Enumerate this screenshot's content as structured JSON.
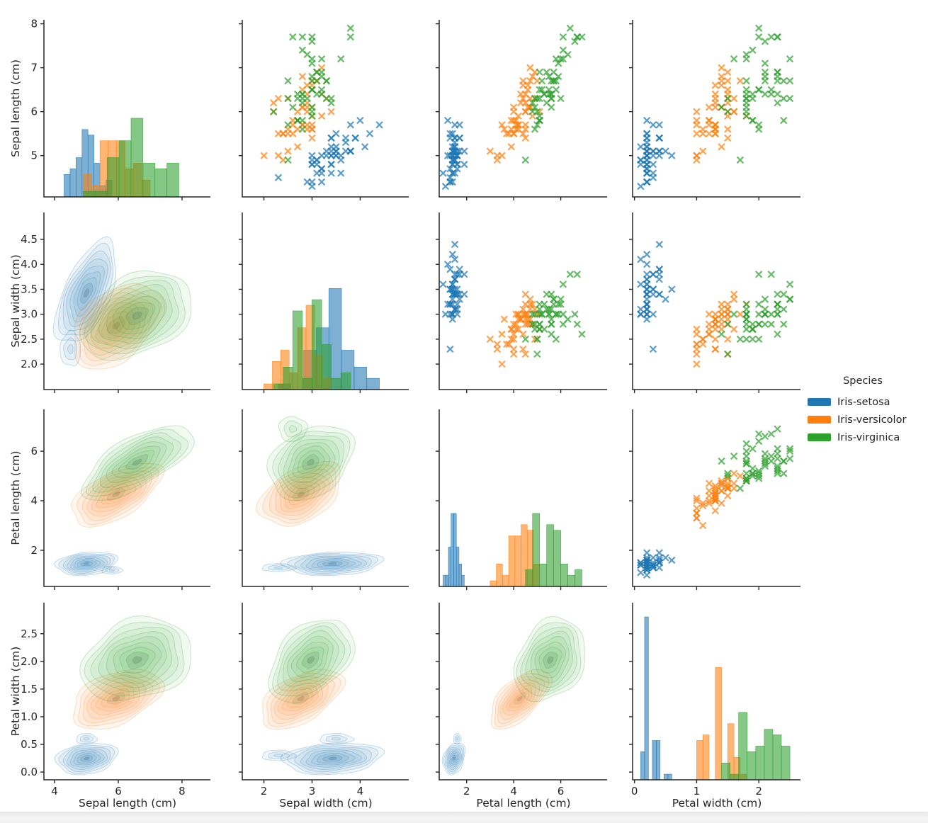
{
  "legend": {
    "title": "Species",
    "entries": [
      {
        "label": "Iris-setosa",
        "color": "#1f77b4"
      },
      {
        "label": "Iris-versicolor",
        "color": "#ff7f0e"
      },
      {
        "label": "Iris-virginica",
        "color": "#2ca02c"
      }
    ]
  },
  "axes": {
    "x_labels": [
      "Sepal length (cm)",
      "Sepal width (cm)",
      "Petal length (cm)",
      "Petal width (cm)"
    ],
    "y_labels": [
      "Sepal length (cm)",
      "Sepal width (cm)",
      "Petal length (cm)",
      "Petal width (cm)"
    ],
    "x_ticks": [
      {
        "values": [
          4,
          6,
          8
        ],
        "labels": [
          "4",
          "6",
          "8"
        ]
      },
      {
        "values": [
          2,
          3,
          4
        ],
        "labels": [
          "2",
          "3",
          "4"
        ]
      },
      {
        "values": [
          2,
          4,
          6
        ],
        "labels": [
          "2",
          "4",
          "6"
        ]
      },
      {
        "values": [
          0,
          1,
          2
        ],
        "labels": [
          "0",
          "1",
          "2"
        ]
      }
    ],
    "y_ticks": [
      {
        "values": [
          5,
          6,
          7,
          8
        ],
        "labels": [
          "5",
          "6",
          "7",
          "8"
        ]
      },
      {
        "values": [
          2.0,
          2.5,
          3.0,
          3.5,
          4.0,
          4.5
        ],
        "labels": [
          "2.0",
          "2.5",
          "3.0",
          "3.5",
          "4.0",
          "4.5"
        ]
      },
      {
        "values": [
          2,
          4,
          6
        ],
        "labels": [
          "2",
          "4",
          "6"
        ]
      },
      {
        "values": [
          0.0,
          0.5,
          1.0,
          1.5,
          2.0,
          2.5
        ],
        "labels": [
          "0.0",
          "0.5",
          "1.0",
          "1.5",
          "2.0",
          "2.5"
        ]
      }
    ],
    "x_lims": [
      [
        3.667,
        8.89
      ],
      [
        1.55,
        5.01
      ],
      [
        0.834,
        7.97
      ],
      [
        -0.03,
        2.67
      ]
    ],
    "y_lims": [
      [
        4.06,
        8.09
      ],
      [
        1.49,
        5.04
      ],
      [
        0.54,
        7.69
      ],
      [
        -0.14,
        3.06
      ]
    ]
  },
  "chart_data": {
    "type": "scatter",
    "subtype": "pairplot-matrix",
    "title": "",
    "variables": [
      "Sepal length (cm)",
      "Sepal width (cm)",
      "Petal length (cm)",
      "Petal width (cm)"
    ],
    "hue": "Species",
    "panel_layout": {
      "diagonal": "histogram",
      "upper_triangle": "scatter-x-markers",
      "lower_triangle": "filled-kde-contours"
    },
    "marker": "x",
    "grid": "off",
    "legend_position": "right",
    "series": [
      {
        "name": "Iris-setosa",
        "color": "#1f77b4",
        "points": [
          [
            5.1,
            3.5,
            1.4,
            0.2
          ],
          [
            4.9,
            3.0,
            1.4,
            0.2
          ],
          [
            4.7,
            3.2,
            1.3,
            0.2
          ],
          [
            4.6,
            3.1,
            1.5,
            0.2
          ],
          [
            5.0,
            3.6,
            1.4,
            0.2
          ],
          [
            5.4,
            3.9,
            1.7,
            0.4
          ],
          [
            4.6,
            3.4,
            1.4,
            0.3
          ],
          [
            5.0,
            3.4,
            1.5,
            0.2
          ],
          [
            4.4,
            2.9,
            1.4,
            0.2
          ],
          [
            4.9,
            3.1,
            1.5,
            0.1
          ],
          [
            5.4,
            3.7,
            1.5,
            0.2
          ],
          [
            4.8,
            3.4,
            1.6,
            0.2
          ],
          [
            4.8,
            3.0,
            1.4,
            0.1
          ],
          [
            4.3,
            3.0,
            1.1,
            0.1
          ],
          [
            5.8,
            4.0,
            1.2,
            0.2
          ],
          [
            5.7,
            4.4,
            1.5,
            0.4
          ],
          [
            5.4,
            3.9,
            1.3,
            0.4
          ],
          [
            5.1,
            3.5,
            1.4,
            0.3
          ],
          [
            5.7,
            3.8,
            1.7,
            0.3
          ],
          [
            5.1,
            3.8,
            1.5,
            0.3
          ],
          [
            5.4,
            3.4,
            1.7,
            0.2
          ],
          [
            5.1,
            3.7,
            1.5,
            0.4
          ],
          [
            4.6,
            3.6,
            1.0,
            0.2
          ],
          [
            5.1,
            3.3,
            1.7,
            0.5
          ],
          [
            4.8,
            3.4,
            1.9,
            0.2
          ],
          [
            5.0,
            3.0,
            1.6,
            0.2
          ],
          [
            5.0,
            3.4,
            1.6,
            0.4
          ],
          [
            5.2,
            3.5,
            1.5,
            0.2
          ],
          [
            5.2,
            3.4,
            1.4,
            0.2
          ],
          [
            4.7,
            3.2,
            1.6,
            0.2
          ],
          [
            4.8,
            3.1,
            1.6,
            0.2
          ],
          [
            5.4,
            3.4,
            1.5,
            0.4
          ],
          [
            5.2,
            4.1,
            1.5,
            0.1
          ],
          [
            5.5,
            4.2,
            1.4,
            0.2
          ],
          [
            4.9,
            3.1,
            1.5,
            0.2
          ],
          [
            5.0,
            3.2,
            1.2,
            0.2
          ],
          [
            5.5,
            3.5,
            1.3,
            0.2
          ],
          [
            4.9,
            3.6,
            1.4,
            0.1
          ],
          [
            4.4,
            3.0,
            1.3,
            0.2
          ],
          [
            5.1,
            3.4,
            1.5,
            0.2
          ],
          [
            5.0,
            3.5,
            1.3,
            0.3
          ],
          [
            4.5,
            2.3,
            1.3,
            0.3
          ],
          [
            4.4,
            3.2,
            1.3,
            0.2
          ],
          [
            5.0,
            3.5,
            1.6,
            0.6
          ],
          [
            5.1,
            3.8,
            1.9,
            0.4
          ],
          [
            4.8,
            3.0,
            1.4,
            0.3
          ],
          [
            5.1,
            3.8,
            1.6,
            0.2
          ],
          [
            4.6,
            3.2,
            1.4,
            0.2
          ],
          [
            5.3,
            3.7,
            1.5,
            0.2
          ],
          [
            5.0,
            3.3,
            1.4,
            0.2
          ]
        ]
      },
      {
        "name": "Iris-versicolor",
        "color": "#ff7f0e",
        "points": [
          [
            7.0,
            3.2,
            4.7,
            1.4
          ],
          [
            6.4,
            3.2,
            4.5,
            1.5
          ],
          [
            6.9,
            3.1,
            4.9,
            1.5
          ],
          [
            5.5,
            2.3,
            4.0,
            1.3
          ],
          [
            6.5,
            2.8,
            4.6,
            1.5
          ],
          [
            5.7,
            2.8,
            4.5,
            1.3
          ],
          [
            6.3,
            3.3,
            4.7,
            1.6
          ],
          [
            4.9,
            2.4,
            3.3,
            1.0
          ],
          [
            6.6,
            2.9,
            4.6,
            1.3
          ],
          [
            5.2,
            2.7,
            3.9,
            1.4
          ],
          [
            5.0,
            2.0,
            3.5,
            1.0
          ],
          [
            5.9,
            3.0,
            4.2,
            1.5
          ],
          [
            6.0,
            2.2,
            4.0,
            1.0
          ],
          [
            6.1,
            2.9,
            4.7,
            1.4
          ],
          [
            5.6,
            2.9,
            3.6,
            1.3
          ],
          [
            6.7,
            3.1,
            4.4,
            1.4
          ],
          [
            5.6,
            3.0,
            4.5,
            1.5
          ],
          [
            5.8,
            2.7,
            4.1,
            1.0
          ],
          [
            6.2,
            2.2,
            4.5,
            1.5
          ],
          [
            5.6,
            2.5,
            3.9,
            1.1
          ],
          [
            5.9,
            3.2,
            4.8,
            1.8
          ],
          [
            6.1,
            2.8,
            4.0,
            1.3
          ],
          [
            6.3,
            2.5,
            4.9,
            1.5
          ],
          [
            6.1,
            2.8,
            4.7,
            1.2
          ],
          [
            6.4,
            2.9,
            4.3,
            1.3
          ],
          [
            6.6,
            3.0,
            4.4,
            1.4
          ],
          [
            6.8,
            2.8,
            4.8,
            1.4
          ],
          [
            6.7,
            3.0,
            5.0,
            1.7
          ],
          [
            6.0,
            2.9,
            4.5,
            1.5
          ],
          [
            5.7,
            2.6,
            3.5,
            1.0
          ],
          [
            5.5,
            2.4,
            3.8,
            1.1
          ],
          [
            5.5,
            2.4,
            3.7,
            1.0
          ],
          [
            5.8,
            2.7,
            3.9,
            1.2
          ],
          [
            6.0,
            2.7,
            5.1,
            1.6
          ],
          [
            5.4,
            3.0,
            4.5,
            1.5
          ],
          [
            6.0,
            3.4,
            4.5,
            1.6
          ],
          [
            6.7,
            3.1,
            4.7,
            1.5
          ],
          [
            6.3,
            2.3,
            4.4,
            1.3
          ],
          [
            5.6,
            3.0,
            4.1,
            1.3
          ],
          [
            5.5,
            2.5,
            4.0,
            1.3
          ],
          [
            5.5,
            2.6,
            4.4,
            1.2
          ],
          [
            6.1,
            3.0,
            4.6,
            1.4
          ],
          [
            5.8,
            2.6,
            4.0,
            1.2
          ],
          [
            5.0,
            2.3,
            3.3,
            1.0
          ],
          [
            5.6,
            2.7,
            4.2,
            1.3
          ],
          [
            5.7,
            3.0,
            4.2,
            1.2
          ],
          [
            5.7,
            2.9,
            4.2,
            1.3
          ],
          [
            6.2,
            2.9,
            4.3,
            1.3
          ],
          [
            5.1,
            2.5,
            3.0,
            1.1
          ],
          [
            5.7,
            2.8,
            4.1,
            1.3
          ]
        ]
      },
      {
        "name": "Iris-virginica",
        "color": "#2ca02c",
        "points": [
          [
            6.3,
            3.3,
            6.0,
            2.5
          ],
          [
            5.8,
            2.7,
            5.1,
            1.9
          ],
          [
            7.1,
            3.0,
            5.9,
            2.1
          ],
          [
            6.3,
            2.9,
            5.6,
            1.8
          ],
          [
            6.5,
            3.0,
            5.8,
            2.2
          ],
          [
            7.6,
            3.0,
            6.6,
            2.1
          ],
          [
            4.9,
            2.5,
            4.5,
            1.7
          ],
          [
            7.3,
            2.9,
            6.3,
            1.8
          ],
          [
            6.7,
            2.5,
            5.8,
            1.8
          ],
          [
            7.2,
            3.6,
            6.1,
            2.5
          ],
          [
            6.5,
            3.2,
            5.1,
            2.0
          ],
          [
            6.4,
            2.7,
            5.3,
            1.9
          ],
          [
            6.8,
            3.0,
            5.5,
            2.1
          ],
          [
            5.7,
            2.5,
            5.0,
            2.0
          ],
          [
            5.8,
            2.8,
            5.1,
            2.4
          ],
          [
            6.4,
            3.2,
            5.3,
            2.3
          ],
          [
            6.5,
            3.0,
            5.5,
            1.8
          ],
          [
            7.7,
            3.8,
            6.7,
            2.2
          ],
          [
            7.7,
            2.6,
            6.9,
            2.3
          ],
          [
            6.0,
            2.2,
            5.0,
            1.5
          ],
          [
            6.9,
            3.2,
            5.7,
            2.3
          ],
          [
            5.6,
            2.8,
            4.9,
            2.0
          ],
          [
            7.7,
            2.8,
            6.7,
            2.0
          ],
          [
            6.3,
            2.7,
            4.9,
            1.8
          ],
          [
            6.7,
            3.3,
            5.7,
            2.1
          ],
          [
            7.2,
            3.2,
            6.0,
            1.8
          ],
          [
            6.2,
            2.8,
            4.8,
            1.8
          ],
          [
            6.1,
            3.0,
            4.9,
            1.8
          ],
          [
            6.4,
            2.8,
            5.6,
            2.1
          ],
          [
            7.2,
            3.0,
            5.8,
            1.6
          ],
          [
            7.4,
            2.8,
            6.1,
            1.9
          ],
          [
            7.9,
            3.8,
            6.4,
            2.0
          ],
          [
            6.4,
            2.8,
            5.6,
            2.2
          ],
          [
            6.3,
            2.8,
            5.1,
            1.5
          ],
          [
            6.1,
            2.6,
            5.6,
            1.4
          ],
          [
            7.7,
            3.0,
            6.1,
            2.3
          ],
          [
            6.3,
            3.4,
            5.6,
            2.4
          ],
          [
            6.4,
            3.1,
            5.5,
            1.8
          ],
          [
            6.0,
            3.0,
            4.8,
            1.8
          ],
          [
            6.9,
            3.1,
            5.4,
            2.1
          ],
          [
            6.7,
            3.1,
            5.6,
            2.4
          ],
          [
            6.9,
            3.1,
            5.1,
            2.3
          ],
          [
            5.8,
            2.7,
            5.1,
            1.9
          ],
          [
            6.8,
            3.2,
            5.9,
            2.3
          ],
          [
            6.7,
            3.3,
            5.7,
            2.5
          ],
          [
            6.7,
            3.0,
            5.2,
            2.3
          ],
          [
            6.3,
            2.5,
            5.0,
            1.9
          ],
          [
            6.5,
            3.0,
            5.2,
            2.0
          ],
          [
            6.2,
            3.4,
            5.4,
            2.3
          ],
          [
            5.9,
            3.0,
            5.1,
            1.8
          ]
        ]
      }
    ]
  },
  "style": {
    "spine_color": "#262626",
    "tick_label_color": "#262626",
    "scatter_opacity": 0.72,
    "hist_fill_opacity": 0.58
  }
}
